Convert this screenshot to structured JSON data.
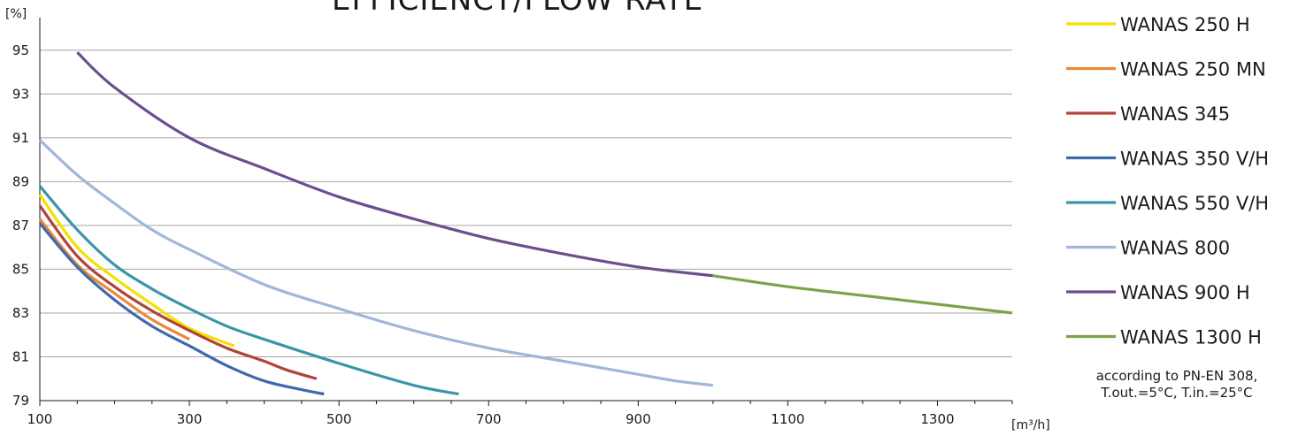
{
  "chart_data": {
    "type": "line",
    "title": "EFFICIENCY/FLOW RATE",
    "ylabel": "[%]",
    "xlabel": "[m³/h]",
    "xlim": [
      100,
      1400
    ],
    "ylim": [
      79,
      96
    ],
    "x_ticks": [
      100,
      300,
      500,
      700,
      900,
      1100,
      1300
    ],
    "y_ticks": [
      79,
      81,
      83,
      85,
      87,
      89,
      91,
      93,
      95
    ],
    "grid": "horizontal",
    "legend_position": "right",
    "series": [
      {
        "name": "WANAS 250 H",
        "color": "#f5e000",
        "x": [
          100,
          150,
          200,
          250,
          300,
          360
        ],
        "y": [
          88.4,
          86.0,
          84.6,
          83.4,
          82.3,
          81.5
        ]
      },
      {
        "name": "WANAS 250 MN",
        "color": "#e88a3a",
        "x": [
          100,
          150,
          200,
          250,
          300
        ],
        "y": [
          87.3,
          85.2,
          83.9,
          82.7,
          81.8
        ]
      },
      {
        "name": "WANAS 345",
        "color": "#b0433a",
        "x": [
          100,
          150,
          200,
          250,
          300,
          350,
          400,
          430,
          470
        ],
        "y": [
          87.9,
          85.6,
          84.2,
          83.1,
          82.2,
          81.4,
          80.8,
          80.4,
          80.0
        ]
      },
      {
        "name": "WANAS 350 V/H",
        "color": "#3e6aad",
        "x": [
          100,
          150,
          200,
          250,
          300,
          350,
          400,
          450,
          480
        ],
        "y": [
          87.1,
          85.1,
          83.6,
          82.4,
          81.5,
          80.6,
          79.9,
          79.5,
          79.3
        ]
      },
      {
        "name": "WANAS 550 V/H",
        "color": "#3a95a8",
        "x": [
          100,
          150,
          200,
          250,
          300,
          350,
          400,
          500,
          600,
          660
        ],
        "y": [
          88.8,
          86.8,
          85.2,
          84.1,
          83.2,
          82.4,
          81.8,
          80.7,
          79.7,
          79.3
        ]
      },
      {
        "name": "WANAS 800",
        "color": "#9fb7d8",
        "x": [
          100,
          150,
          200,
          250,
          300,
          400,
          500,
          600,
          700,
          800,
          900,
          950,
          1000
        ],
        "y": [
          90.9,
          89.3,
          88.0,
          86.8,
          85.9,
          84.3,
          83.2,
          82.2,
          81.4,
          80.8,
          80.2,
          79.9,
          79.7
        ]
      },
      {
        "name": "WANAS 900 H",
        "color": "#6b4e8f",
        "x": [
          150,
          200,
          300,
          400,
          500,
          600,
          700,
          800,
          900,
          1000
        ],
        "y": [
          94.9,
          93.3,
          91.0,
          89.6,
          88.3,
          87.3,
          86.4,
          85.7,
          85.1,
          84.7
        ]
      },
      {
        "name": "WANAS 1300 H",
        "color": "#7ea24a",
        "x": [
          1000,
          1100,
          1200,
          1300,
          1400
        ],
        "y": [
          84.7,
          84.2,
          83.8,
          83.4,
          83.0
        ]
      }
    ]
  },
  "note": {
    "line1": "according to PN-EN 308,",
    "line2": "T.out.=5°C, T.in.=25°C"
  }
}
